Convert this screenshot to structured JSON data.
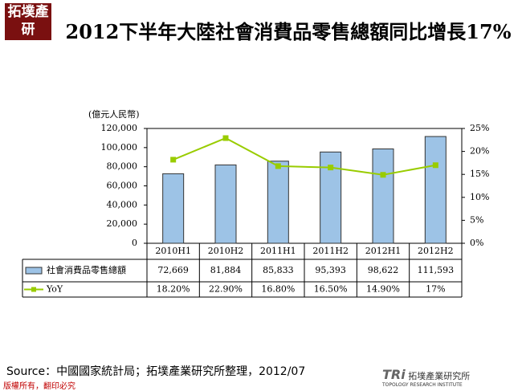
{
  "logo": "拓墣產研",
  "source": "Source：中國國家統計局；拓墣產業研究所整理，2012/07",
  "copyright": "版權所有，翻印必究",
  "brand": {
    "mark": "TRi",
    "name": "拓墣產業研究所",
    "sub": "TOPOLOGY RESEARCH INSTITUTE"
  },
  "chart_data": {
    "type": "bar",
    "title": "2012下半年大陸社會消費品零售總額同比增長17%",
    "y_label": "(億元人民幣)",
    "categories": [
      "2010H1",
      "2010H2",
      "2011H1",
      "2011H2",
      "2012H1",
      "2012H2"
    ],
    "series": [
      {
        "name": "社會消費品零售總額",
        "type": "bar",
        "color": "#9dc3e6",
        "values": [
          72669,
          81884,
          85833,
          95393,
          98622,
          111593
        ],
        "value_labels": [
          "72,669",
          "81,884",
          "85,833",
          "95,393",
          "98,622",
          "111,593"
        ]
      },
      {
        "name": "YoY",
        "type": "line",
        "axis": "y2",
        "color": "#99cc00",
        "values": [
          18.2,
          22.9,
          16.8,
          16.5,
          14.9,
          17
        ],
        "value_labels": [
          "18.20%",
          "22.90%",
          "16.80%",
          "16.50%",
          "14.90%",
          "17%"
        ]
      }
    ],
    "ylim": [
      0,
      120000
    ],
    "yticks": [
      0,
      {
        "value": 20000,
        "label": "20,000"
      },
      {
        "value": 40000,
        "label": "40,000"
      },
      {
        "value": 60000,
        "label": "60,000"
      },
      {
        "value": 80000,
        "label": "80,000"
      },
      {
        "value": 100000,
        "label": "100,000"
      },
      {
        "value": 120000,
        "label": "120,000"
      }
    ],
    "y2lim": [
      0,
      25
    ],
    "y2ticks": [
      {
        "value": 0,
        "label": "0%"
      },
      {
        "value": 5,
        "label": "5%"
      },
      {
        "value": 10,
        "label": "10%"
      },
      {
        "value": 15,
        "label": "15%"
      },
      {
        "value": 20,
        "label": "20%"
      },
      {
        "value": 25,
        "label": "25%"
      }
    ]
  }
}
